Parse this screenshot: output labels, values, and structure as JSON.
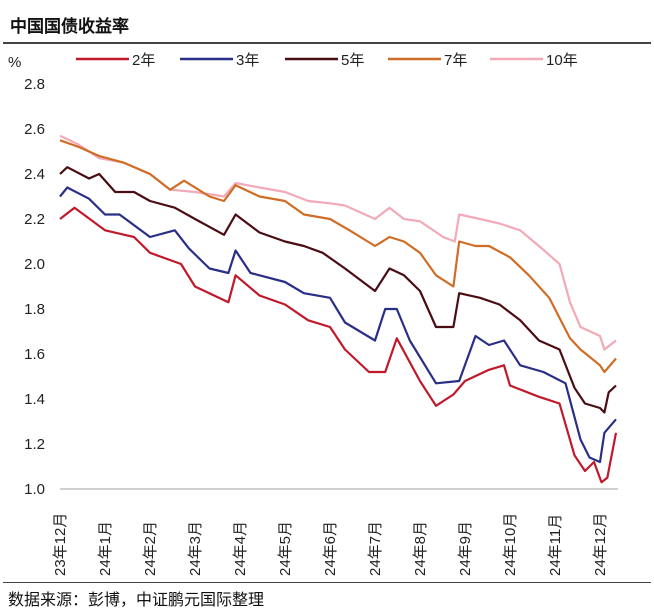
{
  "chart_data": {
    "type": "line",
    "title": "中国国债收益率",
    "ylabel": "%",
    "xlabel": "",
    "ylim": [
      1.0,
      2.8
    ],
    "yticks": [
      "1.0",
      "1.2",
      "1.4",
      "1.6",
      "1.8",
      "2.0",
      "2.2",
      "2.4",
      "2.6",
      "2.8"
    ],
    "xticks": [
      "23年12月",
      "24年1月",
      "24年2月",
      "24年3月",
      "24年4月",
      "24年5月",
      "24年6月",
      "24年7月",
      "24年8月",
      "24年9月",
      "24年10月",
      "24年11月",
      "24年12月"
    ],
    "xlim": [
      "2023-12-01",
      "2024-12-31"
    ],
    "grid": false,
    "legend": "top",
    "source": "数据来源：彭博，中证鹏元国际整理",
    "series": [
      {
        "name": "2年",
        "color": "#c0192b",
        "points": [
          [
            "2023-12-01",
            2.2
          ],
          [
            "2023-12-11",
            2.25
          ],
          [
            "2024-01-01",
            2.15
          ],
          [
            "2024-01-21",
            2.12
          ],
          [
            "2024-02-01",
            2.05
          ],
          [
            "2024-02-21",
            2.0
          ],
          [
            "2024-03-01",
            1.9
          ],
          [
            "2024-03-24",
            1.83
          ],
          [
            "2024-03-29",
            1.95
          ],
          [
            "2024-04-14",
            1.86
          ],
          [
            "2024-05-01",
            1.82
          ],
          [
            "2024-05-17",
            1.75
          ],
          [
            "2024-06-01",
            1.72
          ],
          [
            "2024-06-11",
            1.62
          ],
          [
            "2024-06-27",
            1.52
          ],
          [
            "2024-07-08",
            1.52
          ],
          [
            "2024-07-16",
            1.67
          ],
          [
            "2024-08-01",
            1.48
          ],
          [
            "2024-08-12",
            1.37
          ],
          [
            "2024-08-24",
            1.42
          ],
          [
            "2024-09-01",
            1.48
          ],
          [
            "2024-09-17",
            1.53
          ],
          [
            "2024-09-27",
            1.55
          ],
          [
            "2024-10-01",
            1.46
          ],
          [
            "2024-10-21",
            1.41
          ],
          [
            "2024-11-04",
            1.38
          ],
          [
            "2024-11-14",
            1.15
          ],
          [
            "2024-11-21",
            1.08
          ],
          [
            "2024-11-27",
            1.12
          ],
          [
            "2024-12-02",
            1.03
          ],
          [
            "2024-12-06",
            1.05
          ],
          [
            "2024-12-12",
            1.25
          ]
        ]
      },
      {
        "name": "3年",
        "color": "#2a2f86",
        "points": [
          [
            "2023-12-01",
            2.3
          ],
          [
            "2023-12-06",
            2.34
          ],
          [
            "2023-12-21",
            2.29
          ],
          [
            "2024-01-01",
            2.22
          ],
          [
            "2024-01-11",
            2.22
          ],
          [
            "2024-02-01",
            2.12
          ],
          [
            "2024-02-17",
            2.15
          ],
          [
            "2024-02-26",
            2.07
          ],
          [
            "2024-03-11",
            1.98
          ],
          [
            "2024-03-24",
            1.96
          ],
          [
            "2024-03-29",
            2.06
          ],
          [
            "2024-04-08",
            1.96
          ],
          [
            "2024-05-01",
            1.92
          ],
          [
            "2024-05-14",
            1.87
          ],
          [
            "2024-06-01",
            1.85
          ],
          [
            "2024-06-11",
            1.74
          ],
          [
            "2024-07-01",
            1.66
          ],
          [
            "2024-07-08",
            1.8
          ],
          [
            "2024-07-16",
            1.8
          ],
          [
            "2024-07-25",
            1.66
          ],
          [
            "2024-08-12",
            1.47
          ],
          [
            "2024-08-28",
            1.48
          ],
          [
            "2024-09-08",
            1.68
          ],
          [
            "2024-09-17",
            1.64
          ],
          [
            "2024-09-27",
            1.66
          ],
          [
            "2024-10-08",
            1.55
          ],
          [
            "2024-10-24",
            1.52
          ],
          [
            "2024-11-08",
            1.47
          ],
          [
            "2024-11-18",
            1.22
          ],
          [
            "2024-11-24",
            1.14
          ],
          [
            "2024-12-01",
            1.12
          ],
          [
            "2024-12-04",
            1.25
          ],
          [
            "2024-12-12",
            1.31
          ]
        ]
      },
      {
        "name": "5年",
        "color": "#4a0d14",
        "points": [
          [
            "2023-12-01",
            2.4
          ],
          [
            "2023-12-06",
            2.43
          ],
          [
            "2023-12-21",
            2.38
          ],
          [
            "2023-12-28",
            2.4
          ],
          [
            "2024-01-08",
            2.32
          ],
          [
            "2024-01-21",
            2.32
          ],
          [
            "2024-02-01",
            2.28
          ],
          [
            "2024-02-17",
            2.25
          ],
          [
            "2024-03-01",
            2.2
          ],
          [
            "2024-03-21",
            2.13
          ],
          [
            "2024-03-29",
            2.22
          ],
          [
            "2024-04-14",
            2.14
          ],
          [
            "2024-05-01",
            2.1
          ],
          [
            "2024-05-14",
            2.08
          ],
          [
            "2024-05-27",
            2.05
          ],
          [
            "2024-06-11",
            1.98
          ],
          [
            "2024-07-01",
            1.88
          ],
          [
            "2024-07-11",
            1.98
          ],
          [
            "2024-07-21",
            1.95
          ],
          [
            "2024-08-01",
            1.88
          ],
          [
            "2024-08-12",
            1.72
          ],
          [
            "2024-08-24",
            1.72
          ],
          [
            "2024-08-28",
            1.87
          ],
          [
            "2024-09-11",
            1.85
          ],
          [
            "2024-09-24",
            1.82
          ],
          [
            "2024-10-08",
            1.75
          ],
          [
            "2024-10-21",
            1.66
          ],
          [
            "2024-11-04",
            1.62
          ],
          [
            "2024-11-14",
            1.45
          ],
          [
            "2024-11-21",
            1.38
          ],
          [
            "2024-12-01",
            1.36
          ],
          [
            "2024-12-04",
            1.34
          ],
          [
            "2024-12-07",
            1.43
          ],
          [
            "2024-12-12",
            1.46
          ]
        ]
      },
      {
        "name": "7年",
        "color": "#cf6d26",
        "points": [
          [
            "2023-12-01",
            2.55
          ],
          [
            "2023-12-14",
            2.52
          ],
          [
            "2023-12-28",
            2.48
          ],
          [
            "2024-01-14",
            2.45
          ],
          [
            "2024-02-01",
            2.4
          ],
          [
            "2024-02-14",
            2.33
          ],
          [
            "2024-02-23",
            2.37
          ],
          [
            "2024-03-11",
            2.3
          ],
          [
            "2024-03-21",
            2.28
          ],
          [
            "2024-03-29",
            2.35
          ],
          [
            "2024-04-14",
            2.3
          ],
          [
            "2024-05-01",
            2.28
          ],
          [
            "2024-05-14",
            2.22
          ],
          [
            "2024-06-01",
            2.2
          ],
          [
            "2024-06-14",
            2.15
          ],
          [
            "2024-07-01",
            2.08
          ],
          [
            "2024-07-11",
            2.12
          ],
          [
            "2024-07-21",
            2.1
          ],
          [
            "2024-08-01",
            2.05
          ],
          [
            "2024-08-12",
            1.95
          ],
          [
            "2024-08-24",
            1.9
          ],
          [
            "2024-08-28",
            2.1
          ],
          [
            "2024-09-08",
            2.08
          ],
          [
            "2024-09-17",
            2.08
          ],
          [
            "2024-10-01",
            2.03
          ],
          [
            "2024-10-14",
            1.95
          ],
          [
            "2024-10-28",
            1.85
          ],
          [
            "2024-11-11",
            1.67
          ],
          [
            "2024-11-18",
            1.62
          ],
          [
            "2024-12-01",
            1.55
          ],
          [
            "2024-12-04",
            1.52
          ],
          [
            "2024-12-12",
            1.58
          ]
        ]
      },
      {
        "name": "10年",
        "color": "#f2a9b8",
        "points": [
          [
            "2023-12-01",
            2.57
          ],
          [
            "2023-12-14",
            2.53
          ],
          [
            "2023-12-28",
            2.47
          ],
          [
            "2024-01-14",
            2.45
          ],
          [
            "2024-02-01",
            2.4
          ],
          [
            "2024-02-14",
            2.33
          ],
          [
            "2024-03-01",
            2.32
          ],
          [
            "2024-03-21",
            2.3
          ],
          [
            "2024-03-29",
            2.36
          ],
          [
            "2024-04-14",
            2.34
          ],
          [
            "2024-05-01",
            2.32
          ],
          [
            "2024-05-17",
            2.28
          ],
          [
            "2024-06-01",
            2.27
          ],
          [
            "2024-06-11",
            2.26
          ],
          [
            "2024-07-01",
            2.2
          ],
          [
            "2024-07-11",
            2.25
          ],
          [
            "2024-07-21",
            2.2
          ],
          [
            "2024-08-01",
            2.19
          ],
          [
            "2024-08-17",
            2.12
          ],
          [
            "2024-08-25",
            2.1
          ],
          [
            "2024-08-28",
            2.22
          ],
          [
            "2024-09-11",
            2.2
          ],
          [
            "2024-09-24",
            2.18
          ],
          [
            "2024-10-08",
            2.15
          ],
          [
            "2024-10-21",
            2.08
          ],
          [
            "2024-11-04",
            2.0
          ],
          [
            "2024-11-11",
            1.83
          ],
          [
            "2024-11-18",
            1.72
          ],
          [
            "2024-12-01",
            1.68
          ],
          [
            "2024-12-04",
            1.62
          ],
          [
            "2024-12-12",
            1.66
          ]
        ]
      }
    ]
  }
}
